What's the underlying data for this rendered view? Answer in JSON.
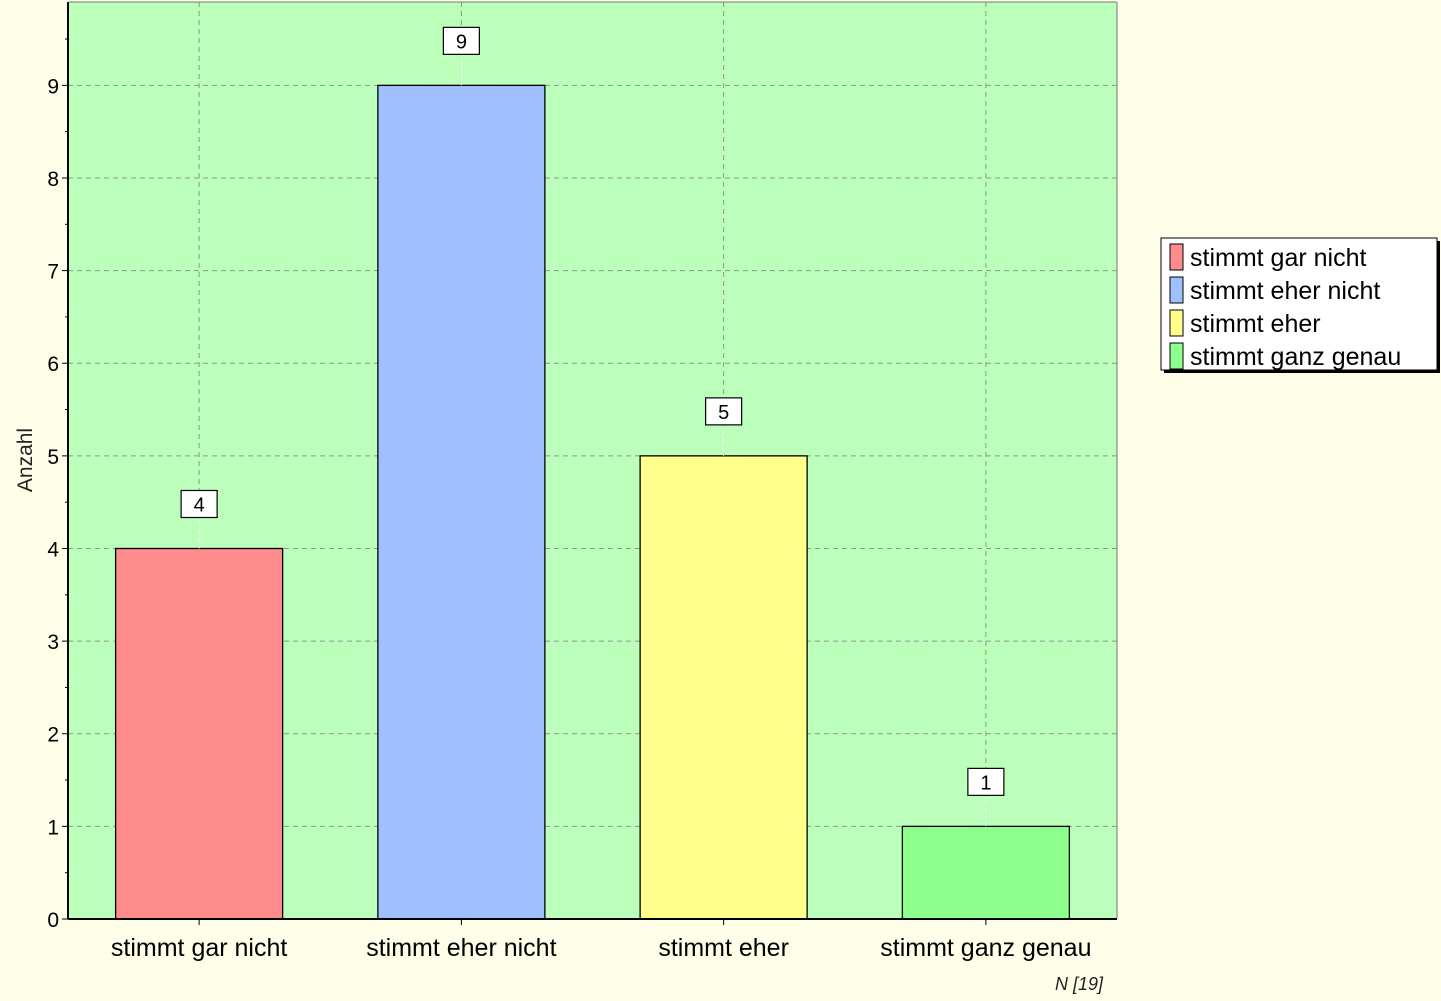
{
  "chart_data": {
    "type": "bar",
    "categories": [
      "stimmt gar nicht",
      "stimmt eher nicht",
      "stimmt eher",
      "stimmt ganz genau"
    ],
    "values": [
      4,
      9,
      5,
      1
    ],
    "colors": [
      "#ff8c8c",
      "#a0bfff",
      "#ffff8c",
      "#8cff8c"
    ],
    "ylabel": "Anzahl",
    "xlabel": "",
    "ylim": [
      0,
      9.9
    ],
    "yticks": [
      0,
      1,
      2,
      3,
      4,
      5,
      6,
      7,
      8,
      9
    ],
    "grid": true,
    "legend": {
      "position": "right",
      "entries": [
        "stimmt gar nicht",
        "stimmt eher nicht",
        "stimmt eher",
        "stimmt ganz genau"
      ]
    },
    "note": "N [19]",
    "plot_background": "#bbffbb",
    "page_background": "#fffee9"
  }
}
